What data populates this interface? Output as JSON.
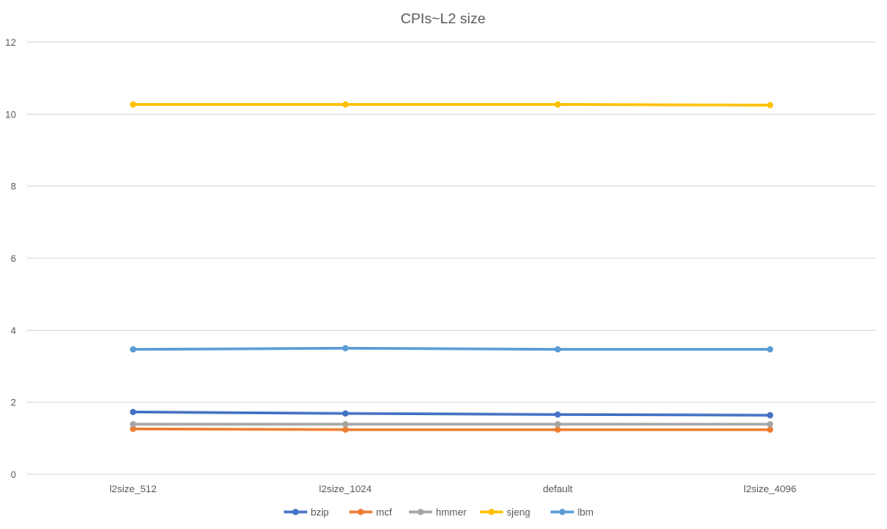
{
  "chart_data": {
    "type": "line",
    "title": "CPIs~L2 size",
    "categories": [
      "l2size_512",
      "l2size_1024",
      "default",
      "l2size_4096"
    ],
    "ylim": [
      0,
      12
    ],
    "yticks": [
      0,
      2,
      4,
      6,
      8,
      10,
      12
    ],
    "grid": true,
    "legend_position": "bottom",
    "series": [
      {
        "name": "bzip",
        "color": "#4472C4",
        "values": [
          1.73,
          1.69,
          1.66,
          1.64
        ]
      },
      {
        "name": "mcf",
        "color": "#ED7D31",
        "values": [
          1.26,
          1.24,
          1.24,
          1.24
        ]
      },
      {
        "name": "hmmer",
        "color": "#A5A5A5",
        "values": [
          1.39,
          1.39,
          1.39,
          1.39
        ]
      },
      {
        "name": "sjeng",
        "color": "#FFC000",
        "values": [
          10.27,
          10.27,
          10.27,
          10.25
        ]
      },
      {
        "name": "lbm",
        "color": "#5B9BD5",
        "values": [
          3.47,
          3.5,
          3.47,
          3.47
        ]
      }
    ]
  }
}
